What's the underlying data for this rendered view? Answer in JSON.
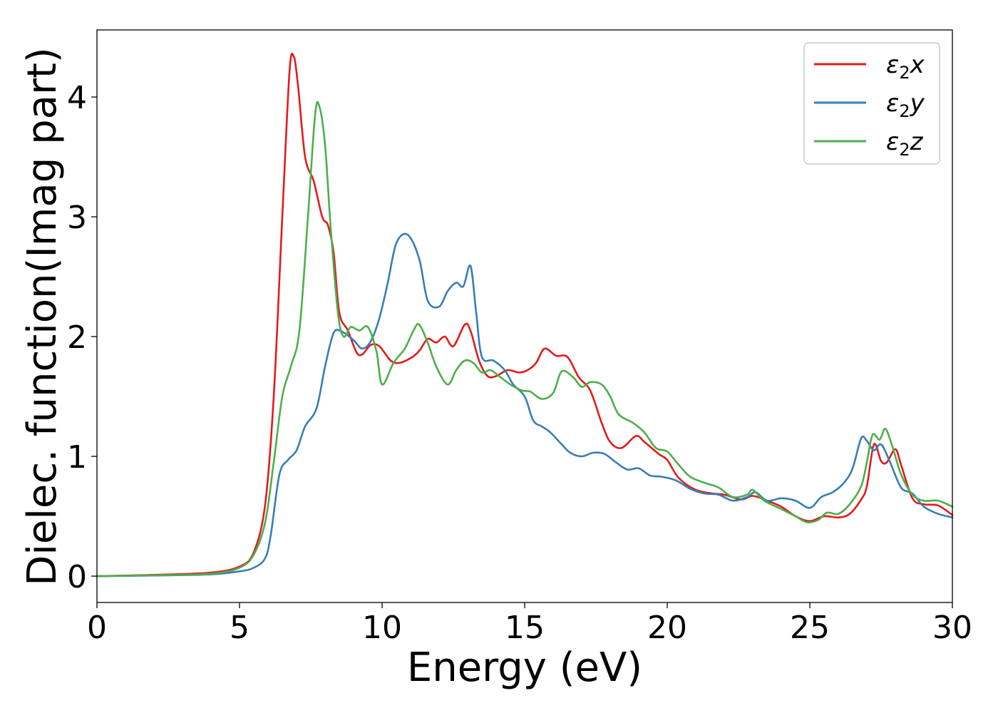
{
  "chart_data": {
    "type": "line",
    "title": "",
    "xlabel": "Energy (eV)",
    "ylabel": "Dielec. function(Imag part)",
    "xlim": [
      0,
      30
    ],
    "ylim": [
      -0.22,
      4.56
    ],
    "xticks": [
      0,
      5,
      10,
      15,
      20,
      25,
      30
    ],
    "yticks": [
      0,
      1,
      2,
      3,
      4
    ],
    "xtick_labels": [
      "0",
      "5",
      "10",
      "15",
      "20",
      "25",
      "30"
    ],
    "ytick_labels": [
      "0",
      "1",
      "2",
      "3",
      "4"
    ],
    "grid": false,
    "legend_position": "top-right",
    "series": [
      {
        "name": "ε2x",
        "legend_base": "ε",
        "legend_sub": "2",
        "legend_suffix": "x",
        "color": "#e41a1c",
        "points": [
          [
            0,
            0
          ],
          [
            2,
            0.01
          ],
          [
            4,
            0.03
          ],
          [
            5,
            0.08
          ],
          [
            5.5,
            0.2
          ],
          [
            5.9,
            0.6
          ],
          [
            6.2,
            1.5
          ],
          [
            6.5,
            3.0
          ],
          [
            6.75,
            4.2
          ],
          [
            6.9,
            4.34
          ],
          [
            7.05,
            4.1
          ],
          [
            7.3,
            3.5
          ],
          [
            7.6,
            3.3
          ],
          [
            7.9,
            3.0
          ],
          [
            8.1,
            2.93
          ],
          [
            8.3,
            2.7
          ],
          [
            8.5,
            2.2
          ],
          [
            8.8,
            2.05
          ],
          [
            9.1,
            1.87
          ],
          [
            9.3,
            1.85
          ],
          [
            9.6,
            1.93
          ],
          [
            9.9,
            1.92
          ],
          [
            10.3,
            1.8
          ],
          [
            10.6,
            1.78
          ],
          [
            11.0,
            1.82
          ],
          [
            11.3,
            1.88
          ],
          [
            11.6,
            1.98
          ],
          [
            11.9,
            1.95
          ],
          [
            12.2,
            2.0
          ],
          [
            12.5,
            1.92
          ],
          [
            12.9,
            2.1
          ],
          [
            13.1,
            2.05
          ],
          [
            13.4,
            1.8
          ],
          [
            13.7,
            1.67
          ],
          [
            14.0,
            1.67
          ],
          [
            14.4,
            1.72
          ],
          [
            14.8,
            1.7
          ],
          [
            15.1,
            1.72
          ],
          [
            15.4,
            1.78
          ],
          [
            15.7,
            1.9
          ],
          [
            16.1,
            1.84
          ],
          [
            16.5,
            1.83
          ],
          [
            16.9,
            1.66
          ],
          [
            17.3,
            1.55
          ],
          [
            17.7,
            1.28
          ],
          [
            18.0,
            1.12
          ],
          [
            18.4,
            1.07
          ],
          [
            18.9,
            1.17
          ],
          [
            19.2,
            1.12
          ],
          [
            19.7,
            1.02
          ],
          [
            20.0,
            0.97
          ],
          [
            20.4,
            0.82
          ],
          [
            21.0,
            0.72
          ],
          [
            21.6,
            0.69
          ],
          [
            22.0,
            0.68
          ],
          [
            22.6,
            0.64
          ],
          [
            23.0,
            0.67
          ],
          [
            23.5,
            0.63
          ],
          [
            24.0,
            0.58
          ],
          [
            24.5,
            0.5
          ],
          [
            25.0,
            0.46
          ],
          [
            25.5,
            0.5
          ],
          [
            26.0,
            0.49
          ],
          [
            26.4,
            0.52
          ],
          [
            26.8,
            0.64
          ],
          [
            27.0,
            0.75
          ],
          [
            27.25,
            1.1
          ],
          [
            27.5,
            0.96
          ],
          [
            27.7,
            0.95
          ],
          [
            28.0,
            1.06
          ],
          [
            28.2,
            0.93
          ],
          [
            28.6,
            0.65
          ],
          [
            29.0,
            0.6
          ],
          [
            29.5,
            0.59
          ],
          [
            30.0,
            0.51
          ]
        ]
      },
      {
        "name": "ε2y",
        "legend_base": "ε",
        "legend_sub": "2",
        "legend_suffix": "y",
        "color": "#377eb8",
        "points": [
          [
            0,
            0
          ],
          [
            2,
            0.005
          ],
          [
            4,
            0.015
          ],
          [
            5,
            0.04
          ],
          [
            5.5,
            0.07
          ],
          [
            5.9,
            0.15
          ],
          [
            6.1,
            0.35
          ],
          [
            6.4,
            0.85
          ],
          [
            6.7,
            0.97
          ],
          [
            7.0,
            1.05
          ],
          [
            7.3,
            1.25
          ],
          [
            7.7,
            1.4
          ],
          [
            8.0,
            1.75
          ],
          [
            8.3,
            2.03
          ],
          [
            8.6,
            2.04
          ],
          [
            9.0,
            1.97
          ],
          [
            9.3,
            1.9
          ],
          [
            9.6,
            1.96
          ],
          [
            9.9,
            2.15
          ],
          [
            10.2,
            2.45
          ],
          [
            10.5,
            2.78
          ],
          [
            10.9,
            2.85
          ],
          [
            11.3,
            2.65
          ],
          [
            11.6,
            2.3
          ],
          [
            12.0,
            2.25
          ],
          [
            12.3,
            2.38
          ],
          [
            12.6,
            2.45
          ],
          [
            12.85,
            2.42
          ],
          [
            13.1,
            2.59
          ],
          [
            13.3,
            2.2
          ],
          [
            13.5,
            1.83
          ],
          [
            13.9,
            1.8
          ],
          [
            14.3,
            1.72
          ],
          [
            14.6,
            1.6
          ],
          [
            15.0,
            1.5
          ],
          [
            15.3,
            1.3
          ],
          [
            15.6,
            1.25
          ],
          [
            15.9,
            1.2
          ],
          [
            16.3,
            1.1
          ],
          [
            16.6,
            1.03
          ],
          [
            17.0,
            1.0
          ],
          [
            17.4,
            1.03
          ],
          [
            17.8,
            1.02
          ],
          [
            18.2,
            0.95
          ],
          [
            18.6,
            0.89
          ],
          [
            19.0,
            0.9
          ],
          [
            19.4,
            0.84
          ],
          [
            19.8,
            0.83
          ],
          [
            20.3,
            0.8
          ],
          [
            20.8,
            0.73
          ],
          [
            21.3,
            0.69
          ],
          [
            21.8,
            0.68
          ],
          [
            22.3,
            0.63
          ],
          [
            22.8,
            0.66
          ],
          [
            23.1,
            0.7
          ],
          [
            23.5,
            0.63
          ],
          [
            24.0,
            0.65
          ],
          [
            24.5,
            0.63
          ],
          [
            25.0,
            0.57
          ],
          [
            25.4,
            0.66
          ],
          [
            25.8,
            0.7
          ],
          [
            26.2,
            0.78
          ],
          [
            26.5,
            0.9
          ],
          [
            26.8,
            1.15
          ],
          [
            27.0,
            1.13
          ],
          [
            27.25,
            1.05
          ],
          [
            27.5,
            1.1
          ],
          [
            27.8,
            0.96
          ],
          [
            28.2,
            0.74
          ],
          [
            28.6,
            0.69
          ],
          [
            29.0,
            0.58
          ],
          [
            29.5,
            0.52
          ],
          [
            30.0,
            0.49
          ]
        ]
      },
      {
        "name": "ε2z",
        "legend_base": "ε",
        "legend_sub": "2",
        "legend_suffix": "z",
        "color": "#4daf4a",
        "points": [
          [
            0,
            0
          ],
          [
            2,
            0.007
          ],
          [
            4,
            0.02
          ],
          [
            5,
            0.07
          ],
          [
            5.5,
            0.18
          ],
          [
            5.9,
            0.45
          ],
          [
            6.2,
            0.95
          ],
          [
            6.5,
            1.5
          ],
          [
            6.8,
            1.75
          ],
          [
            7.1,
            2.05
          ],
          [
            7.4,
            3.0
          ],
          [
            7.65,
            3.85
          ],
          [
            7.8,
            3.92
          ],
          [
            8.0,
            3.6
          ],
          [
            8.2,
            2.9
          ],
          [
            8.45,
            2.2
          ],
          [
            8.65,
            2.0
          ],
          [
            8.9,
            2.08
          ],
          [
            9.2,
            2.05
          ],
          [
            9.5,
            2.08
          ],
          [
            9.8,
            1.88
          ],
          [
            10.0,
            1.6
          ],
          [
            10.4,
            1.78
          ],
          [
            10.8,
            1.9
          ],
          [
            11.1,
            2.05
          ],
          [
            11.3,
            2.1
          ],
          [
            11.6,
            1.95
          ],
          [
            11.9,
            1.75
          ],
          [
            12.3,
            1.6
          ],
          [
            12.6,
            1.72
          ],
          [
            12.9,
            1.8
          ],
          [
            13.2,
            1.78
          ],
          [
            13.5,
            1.7
          ],
          [
            13.8,
            1.72
          ],
          [
            14.1,
            1.67
          ],
          [
            14.5,
            1.6
          ],
          [
            14.9,
            1.55
          ],
          [
            15.2,
            1.54
          ],
          [
            15.6,
            1.48
          ],
          [
            16.0,
            1.53
          ],
          [
            16.3,
            1.71
          ],
          [
            16.7,
            1.66
          ],
          [
            17.0,
            1.58
          ],
          [
            17.3,
            1.62
          ],
          [
            17.7,
            1.6
          ],
          [
            18.0,
            1.5
          ],
          [
            18.3,
            1.35
          ],
          [
            18.8,
            1.28
          ],
          [
            19.2,
            1.2
          ],
          [
            19.6,
            1.07
          ],
          [
            20.0,
            1.04
          ],
          [
            20.4,
            0.93
          ],
          [
            20.8,
            0.83
          ],
          [
            21.3,
            0.78
          ],
          [
            21.8,
            0.74
          ],
          [
            22.3,
            0.66
          ],
          [
            22.8,
            0.68
          ],
          [
            23.0,
            0.72
          ],
          [
            23.4,
            0.63
          ],
          [
            24.0,
            0.56
          ],
          [
            24.5,
            0.5
          ],
          [
            24.9,
            0.45
          ],
          [
            25.3,
            0.47
          ],
          [
            25.6,
            0.53
          ],
          [
            26.0,
            0.52
          ],
          [
            26.4,
            0.6
          ],
          [
            26.8,
            0.75
          ],
          [
            27.0,
            0.95
          ],
          [
            27.2,
            1.18
          ],
          [
            27.45,
            1.14
          ],
          [
            27.65,
            1.23
          ],
          [
            27.9,
            1.08
          ],
          [
            28.2,
            0.85
          ],
          [
            28.6,
            0.68
          ],
          [
            29.0,
            0.63
          ],
          [
            29.5,
            0.63
          ],
          [
            30.0,
            0.58
          ]
        ]
      }
    ]
  }
}
